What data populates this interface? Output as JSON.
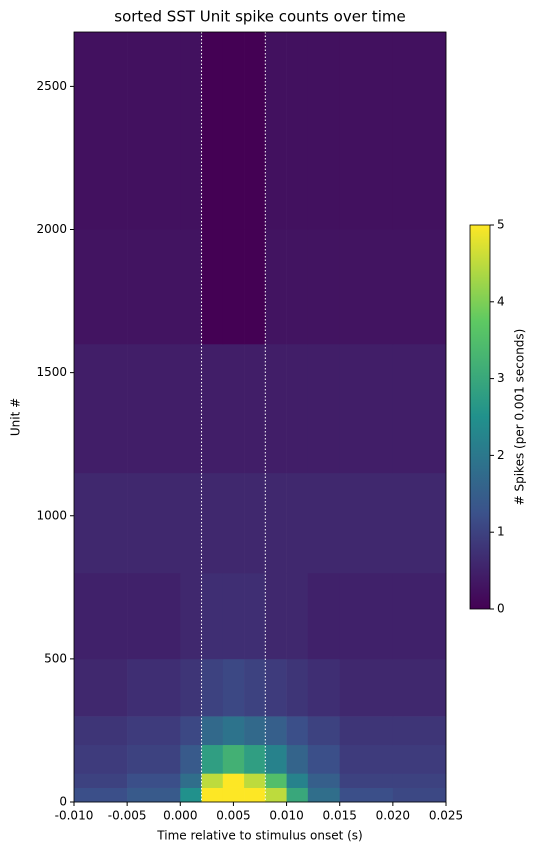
{
  "chart_data": {
    "type": "heatmap",
    "title": "sorted SST Unit spike counts over time",
    "x_label": "Time relative to stimulus onset (s)",
    "y_label": "Unit #",
    "x_edges": [
      -0.01,
      -0.005,
      0,
      0.002,
      0.004,
      0.006,
      0.008,
      0.01,
      0.012,
      0.015,
      0.02,
      0.025
    ],
    "y_edges": [
      0,
      50,
      100,
      200,
      300,
      500,
      800,
      1150,
      1600,
      2000,
      2690
    ],
    "z": [
      [
        1.2,
        1.4,
        2.5,
        5,
        5,
        5,
        4.5,
        3,
        1.8,
        1.2,
        1.1
      ],
      [
        1.0,
        1.2,
        1.8,
        4.5,
        5,
        4.5,
        3.5,
        2.2,
        1.5,
        1.0,
        1.0
      ],
      [
        0.9,
        1.0,
        1.4,
        2.8,
        3.2,
        2.8,
        2.2,
        1.6,
        1.2,
        0.9,
        0.9
      ],
      [
        0.8,
        0.9,
        1.1,
        1.7,
        1.9,
        1.7,
        1.5,
        1.2,
        1.0,
        0.8,
        0.8
      ],
      [
        0.6,
        0.7,
        0.8,
        1.0,
        1.1,
        1.0,
        0.9,
        0.8,
        0.7,
        0.6,
        0.6
      ],
      [
        0.5,
        0.5,
        0.6,
        0.7,
        0.7,
        0.7,
        0.6,
        0.6,
        0.5,
        0.5,
        0.5
      ],
      [
        0.6,
        0.6,
        0.6,
        0.6,
        0.6,
        0.6,
        0.6,
        0.6,
        0.6,
        0.6,
        0.6
      ],
      [
        0.45,
        0.45,
        0.45,
        0.45,
        0.45,
        0.45,
        0.45,
        0.45,
        0.45,
        0.45,
        0.45
      ],
      [
        0.3,
        0.3,
        0.3,
        0,
        0,
        0,
        0.3,
        0.3,
        0.3,
        0.3,
        0.3
      ],
      [
        0.25,
        0.25,
        0.25,
        0,
        0,
        0,
        0.25,
        0.25,
        0.25,
        0.25,
        0.25
      ]
    ],
    "vlines": [
      0.002,
      0.008
    ],
    "vline_color": "#ffffff",
    "colormap": "viridis",
    "xlim": [
      -0.01,
      0.025
    ],
    "xticks": [
      {
        "value": -0.01,
        "label": "-0.010"
      },
      {
        "value": -0.005,
        "label": "-0.005"
      },
      {
        "value": 0,
        "label": "0.000"
      },
      {
        "value": 0.005,
        "label": "0.005"
      },
      {
        "value": 0.01,
        "label": "0.010"
      },
      {
        "value": 0.015,
        "label": "0.015"
      },
      {
        "value": 0.02,
        "label": "0.020"
      },
      {
        "value": 0.025,
        "label": "0.025"
      }
    ],
    "ylim": [
      0,
      2690
    ],
    "yticks": [
      0,
      500,
      1000,
      1500,
      2000,
      2500
    ],
    "clim": [
      0,
      5
    ],
    "cticks": [
      0,
      1,
      2,
      3,
      4,
      5
    ],
    "colorbar_label": "# Spikes (per 0.001 seconds)"
  }
}
